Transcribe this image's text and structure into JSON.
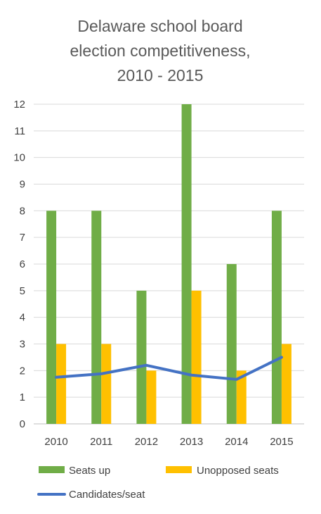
{
  "chart_data": {
    "type": "bar",
    "title_lines": [
      "Delaware school board",
      "election competitiveness,",
      "2010 - 2015"
    ],
    "categories": [
      "2010",
      "2011",
      "2012",
      "2013",
      "2014",
      "2015"
    ],
    "ylim": [
      0,
      12
    ],
    "yticks": [
      "0",
      "1",
      "2",
      "3",
      "4",
      "5",
      "6",
      "7",
      "8",
      "9",
      "10",
      "11",
      "12"
    ],
    "grid": true,
    "legend_position": "bottom",
    "series": [
      {
        "name": "Seats up",
        "type": "bar",
        "color": "#70ad47",
        "values": [
          8,
          8,
          5,
          12,
          6,
          8
        ]
      },
      {
        "name": "Unopposed seats",
        "type": "bar",
        "color": "#ffc000",
        "values": [
          3,
          3,
          2,
          5,
          2,
          3
        ]
      },
      {
        "name": "Candidates/seat",
        "type": "line",
        "color": "#4472c4",
        "values": [
          1.75,
          1.88,
          2.2,
          1.83,
          1.67,
          2.5
        ]
      }
    ]
  }
}
